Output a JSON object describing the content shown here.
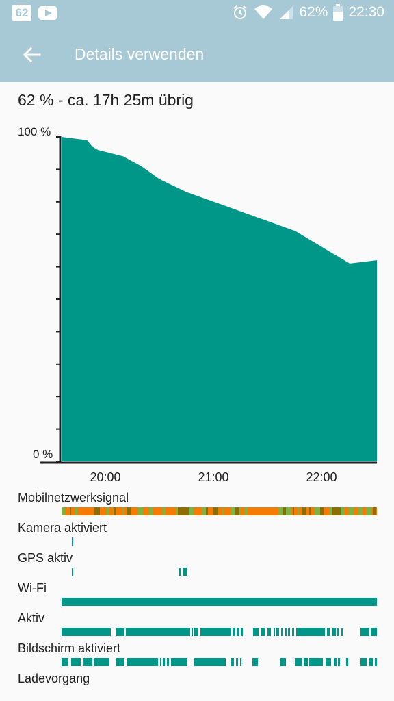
{
  "status_bar": {
    "notification_count": "62",
    "battery_percent": "62%",
    "time": "22:30",
    "icons": [
      "youtube-icon",
      "alarm-icon",
      "wifi-icon",
      "signal-icon",
      "battery-icon"
    ]
  },
  "app_bar": {
    "title": "Details verwenden",
    "back_icon": "arrow-back-icon"
  },
  "summary": "62 % - ca. 17h 25m übrig",
  "colors": {
    "accent": "#009688",
    "header": "#a7c9d6",
    "signal_orange": "#f57c00",
    "signal_green": "#7cb342"
  },
  "chart_data": {
    "type": "area",
    "y_labels": [
      "100 %",
      "0 %"
    ],
    "x_labels": [
      "20:00",
      "21:00",
      "22:00"
    ],
    "ylim": [
      0,
      100
    ],
    "x": [
      "19:36",
      "19:50",
      "19:53",
      "19:56",
      "20:10",
      "20:20",
      "20:30",
      "20:45",
      "21:00",
      "21:15",
      "21:30",
      "21:45",
      "22:00",
      "22:15",
      "22:30"
    ],
    "values": [
      100,
      99,
      97,
      96,
      94,
      91,
      87,
      83,
      80,
      77,
      74,
      71,
      66,
      61,
      62
    ]
  },
  "usage_rows": [
    {
      "label": "Mobilnetzwerksignal"
    },
    {
      "label": "Kamera aktiviert"
    },
    {
      "label": "GPS aktiv"
    },
    {
      "label": "Wi-Fi"
    },
    {
      "label": "Aktiv"
    },
    {
      "label": "Bildschirm aktiviert"
    },
    {
      "label": "Ladevorgang"
    }
  ]
}
